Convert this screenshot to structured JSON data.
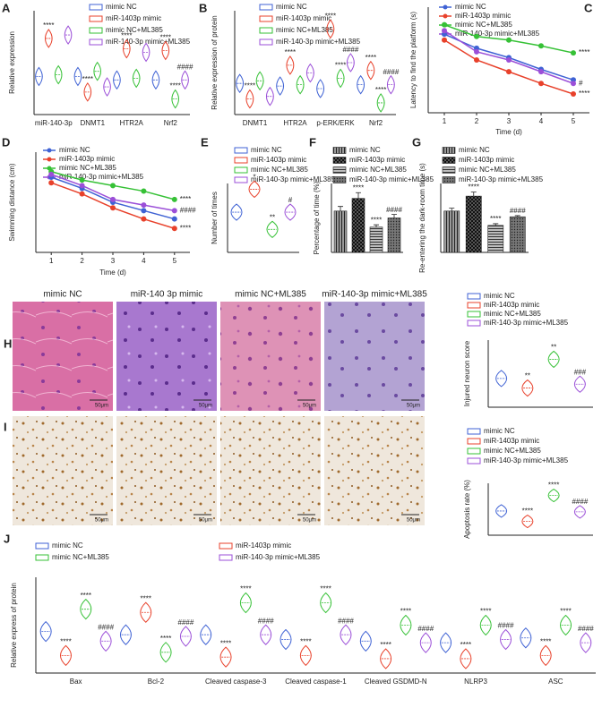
{
  "chart_data": [
    {
      "type": "violin",
      "panel_label": "A",
      "ylabel": "Relative expression",
      "categories": [
        "miR-140-3p",
        "DNMT1",
        "HTR2A",
        "Nrf2"
      ],
      "ylim": [
        0,
        3
      ],
      "legend": "upper right",
      "series": [
        {
          "name": "mimic NC",
          "color": "#3f62d4",
          "values": [
            1.1,
            1.1,
            1.0,
            1.0
          ],
          "annotations": [
            null,
            null,
            null,
            null
          ]
        },
        {
          "name": "miR-1403p mimic",
          "color": "#e8412b",
          "values": [
            2.2,
            0.65,
            1.9,
            1.85
          ],
          "annotations": [
            "****",
            "****",
            "****",
            "****"
          ]
        },
        {
          "name": "mimic NC+ML385",
          "color": "#36c136",
          "values": [
            1.15,
            1.25,
            1.05,
            0.45
          ],
          "annotations": [
            null,
            null,
            null,
            "****"
          ]
        },
        {
          "name": "miR-140-3p mimic+ML385",
          "color": "#9b4fd8",
          "values": [
            2.3,
            0.8,
            1.8,
            1.0
          ],
          "annotations": [
            null,
            null,
            null,
            "####"
          ]
        }
      ]
    },
    {
      "type": "violin",
      "panel_label": "B",
      "ylabel": "Relative expression of protein",
      "categories": [
        "DNMT1",
        "HTR2A",
        "p-ERK/ERK",
        "Nrf2"
      ],
      "ylim": [
        0,
        4
      ],
      "legend": "upper right",
      "series": [
        {
          "name": "mimic NC",
          "color": "#3f62d4",
          "values": [
            1.2,
            1.1,
            1.0,
            1.15
          ],
          "annotations": [
            null,
            null,
            null,
            null
          ]
        },
        {
          "name": "miR-1403p mimic",
          "color": "#e8412b",
          "values": [
            0.6,
            1.9,
            3.3,
            1.7
          ],
          "annotations": [
            "****",
            "****",
            "****",
            "****"
          ]
        },
        {
          "name": "mimic NC+ML385",
          "color": "#36c136",
          "values": [
            1.3,
            1.15,
            1.4,
            0.45
          ],
          "annotations": [
            null,
            null,
            "****",
            "****"
          ]
        },
        {
          "name": "miR-140-3p mimic+ML385",
          "color": "#9b4fd8",
          "values": [
            0.7,
            1.6,
            2.0,
            1.15
          ],
          "annotations": [
            null,
            null,
            "####",
            "####"
          ]
        }
      ]
    },
    {
      "type": "line",
      "panel_label": "C",
      "ylabel": "Latency to find the platform (s)",
      "xlabel": "Time (d)",
      "x": [
        1,
        2,
        3,
        4,
        5
      ],
      "xlim": [
        0.5,
        5.5
      ],
      "xticks": [
        1,
        2,
        3,
        4,
        5
      ],
      "ylim": [
        0,
        90
      ],
      "legend": "upper right",
      "series": [
        {
          "name": "mimic NC",
          "color": "#3f62d4",
          "values": [
            67,
            55,
            47,
            37,
            28
          ],
          "annotations": [
            null,
            null,
            null,
            null,
            null
          ]
        },
        {
          "name": "miR-1403p mimic",
          "color": "#e8412b",
          "values": [
            62,
            45,
            35,
            25,
            16
          ],
          "annotations": [
            null,
            null,
            null,
            null,
            "****"
          ]
        },
        {
          "name": "mimic NC+ML385",
          "color": "#36c136",
          "values": [
            75,
            65,
            62,
            57,
            51
          ],
          "annotations": [
            null,
            null,
            null,
            null,
            "****"
          ]
        },
        {
          "name": "miR-140-3p mimic+ML385",
          "color": "#9b4fd8",
          "values": [
            70,
            52,
            45,
            35,
            25
          ],
          "annotations": [
            null,
            null,
            null,
            null,
            "#"
          ]
        }
      ]
    },
    {
      "type": "line",
      "panel_label": "D",
      "ylabel": "Swimming distance (cm)",
      "xlabel": "Time (d)",
      "x": [
        1,
        2,
        3,
        4,
        5
      ],
      "xlim": [
        0.5,
        5.5
      ],
      "xticks": [
        1,
        2,
        3,
        4,
        5
      ],
      "ylim": [
        0,
        1800
      ],
      "legend": "upper right",
      "series": [
        {
          "name": "mimic NC",
          "color": "#3f62d4",
          "values": [
            1350,
            1150,
            900,
            750,
            600
          ],
          "annotations": [
            null,
            null,
            null,
            null,
            null
          ]
        },
        {
          "name": "miR-1403p mimic",
          "color": "#e8412b",
          "values": [
            1250,
            1050,
            800,
            600,
            430
          ],
          "annotations": [
            null,
            null,
            null,
            null,
            "****"
          ]
        },
        {
          "name": "mimic NC+ML385",
          "color": "#36c136",
          "values": [
            1450,
            1300,
            1200,
            1100,
            950
          ],
          "annotations": [
            null,
            null,
            null,
            null,
            "****"
          ]
        },
        {
          "name": "miR-140-3p mimic+ML385",
          "color": "#9b4fd8",
          "values": [
            1400,
            1200,
            950,
            850,
            750
          ],
          "annotations": [
            null,
            null,
            null,
            null,
            "####"
          ]
        }
      ]
    },
    {
      "type": "violin",
      "panel_label": "E",
      "ylabel": "Number of times",
      "categories": [
        null
      ],
      "ylim": [
        0,
        12
      ],
      "legend": "upper left",
      "series": [
        {
          "name": "mimic NC",
          "color": "#3f62d4",
          "values": [
            7
          ],
          "annotations": [
            null
          ]
        },
        {
          "name": "miR-1403p mimic",
          "color": "#e8412b",
          "values": [
            11
          ],
          "annotations": [
            "*"
          ]
        },
        {
          "name": "mimic NC+ML385",
          "color": "#36c136",
          "values": [
            4
          ],
          "annotations": [
            "**"
          ]
        },
        {
          "name": "miR-140-3p mimic+ML385",
          "color": "#9b4fd8",
          "values": [
            7
          ],
          "annotations": [
            "#"
          ]
        }
      ]
    },
    {
      "type": "bar",
      "panel_label": "F",
      "ylabel": "Percentage of time (%)",
      "categories": [
        null
      ],
      "ylim": [
        0,
        60
      ],
      "legend": "upper left",
      "series": [
        {
          "name": "mimic NC",
          "color": "#9a9a9a",
          "values": [
            36
          ],
          "errors": [
            4
          ],
          "annotations": [
            null
          ]
        },
        {
          "name": "miR-1403p mimic",
          "color": "#555555",
          "values": [
            47
          ],
          "errors": [
            5
          ],
          "annotations": [
            "****"
          ]
        },
        {
          "name": "mimic NC+ML385",
          "color": "#bdbdbd",
          "values": [
            22
          ],
          "errors": [
            2
          ],
          "annotations": [
            "****"
          ]
        },
        {
          "name": "miR-140-3p mimic+ML385",
          "color": "#777777",
          "values": [
            30
          ],
          "errors": [
            3
          ],
          "annotations": [
            "####"
          ]
        }
      ]
    },
    {
      "type": "bar",
      "panel_label": "G",
      "ylabel": "Re-entering the dark-room time (s)",
      "categories": [
        null
      ],
      "ylim": [
        0,
        120
      ],
      "legend": "upper left",
      "series": [
        {
          "name": "mimic NC",
          "color": "#9a9a9a",
          "values": [
            72
          ],
          "errors": [
            5
          ],
          "annotations": [
            null
          ]
        },
        {
          "name": "miR-1403p mimic",
          "color": "#555555",
          "values": [
            98
          ],
          "errors": [
            7
          ],
          "annotations": [
            "****"
          ]
        },
        {
          "name": "mimic NC+ML385",
          "color": "#bdbdbd",
          "values": [
            47
          ],
          "errors": [
            3
          ],
          "annotations": [
            "****"
          ]
        },
        {
          "name": "miR-140-3p mimic+ML385",
          "color": "#777777",
          "values": [
            62
          ],
          "errors": [
            2
          ],
          "annotations": [
            "####"
          ]
        }
      ]
    },
    {
      "type": "violin",
      "panel_label": "H",
      "ylabel": "Injured neuron score",
      "categories": [
        null
      ],
      "ylim": [
        0,
        3.5
      ],
      "legend": "above",
      "images": [
        {
          "title": "mimic NC",
          "scale": "50μm"
        },
        {
          "title": "miR-140 3p mimic",
          "scale": "50μm"
        },
        {
          "title": "mimic NC+ML385",
          "scale": "50μm"
        },
        {
          "title": "miR-140-3p mimic+ML385",
          "scale": "50μm"
        }
      ],
      "series": [
        {
          "name": "mimic NC",
          "color": "#3f62d4",
          "values": [
            1.5
          ],
          "annotations": [
            null
          ]
        },
        {
          "name": "miR-1403p mimic",
          "color": "#e8412b",
          "values": [
            1
          ],
          "annotations": [
            "**"
          ]
        },
        {
          "name": "mimic NC+ML385",
          "color": "#36c136",
          "values": [
            2.5
          ],
          "annotations": [
            "**"
          ]
        },
        {
          "name": "miR-140-3p mimic+ML385",
          "color": "#9b4fd8",
          "values": [
            1.2
          ],
          "annotations": [
            "###"
          ]
        }
      ]
    },
    {
      "type": "violin",
      "panel_label": "I",
      "ylabel": "Apoptosis rate (%)",
      "categories": [
        null
      ],
      "ylim": [
        0,
        30
      ],
      "legend": "above",
      "images": [
        {
          "scale": "50μm"
        },
        {
          "scale": "50μm"
        },
        {
          "scale": "50μm"
        },
        {
          "scale": "50μm"
        }
      ],
      "series": [
        {
          "name": "mimic NC",
          "color": "#3f62d4",
          "values": [
            14
          ],
          "annotations": [
            null
          ]
        },
        {
          "name": "miR-1403p mimic",
          "color": "#e8412b",
          "values": [
            8
          ],
          "annotations": [
            "****"
          ]
        },
        {
          "name": "mimic NC+ML385",
          "color": "#36c136",
          "values": [
            23
          ],
          "annotations": [
            "****"
          ]
        },
        {
          "name": "miR-140-3p mimic+ML385",
          "color": "#9b4fd8",
          "values": [
            13.5
          ],
          "annotations": [
            "####"
          ]
        }
      ]
    },
    {
      "type": "violin",
      "panel_label": "J",
      "ylabel": "Relative express of protein",
      "categories": [
        "Bax",
        "Bcl-2",
        "Cleaved caspase-3",
        "Cleaved caspase-1",
        "Cleaved GSDMD-N",
        "NLRP3",
        "ASC"
      ],
      "ylim": [
        0,
        3
      ],
      "legend": "above",
      "series": [
        {
          "name": "mimic NC",
          "color": "#3f62d4",
          "values": [
            1.3,
            1.2,
            1.2,
            1.05,
            1.0,
            0.95,
            1.1
          ],
          "annotations": [
            null,
            null,
            null,
            null,
            null,
            null,
            null
          ]
        },
        {
          "name": "miR-1403p mimic",
          "color": "#e8412b",
          "values": [
            0.55,
            1.9,
            0.5,
            0.55,
            0.45,
            0.45,
            0.55
          ],
          "annotations": [
            "****",
            "****",
            "****",
            "****",
            "****",
            "****",
            "****"
          ]
        },
        {
          "name": "mimic NC+ML385",
          "color": "#36c136",
          "values": [
            2.0,
            0.65,
            2.2,
            2.2,
            1.5,
            1.5,
            1.5
          ],
          "annotations": [
            "****",
            "****",
            "****",
            "****",
            "****",
            "****",
            "****"
          ]
        },
        {
          "name": "miR-140-3p mimic+ML385",
          "color": "#9b4fd8",
          "values": [
            1.0,
            1.15,
            1.2,
            1.2,
            0.95,
            1.05,
            0.95
          ],
          "annotations": [
            "####",
            "####",
            "####",
            "####",
            "####",
            "####",
            "####"
          ]
        }
      ]
    }
  ]
}
